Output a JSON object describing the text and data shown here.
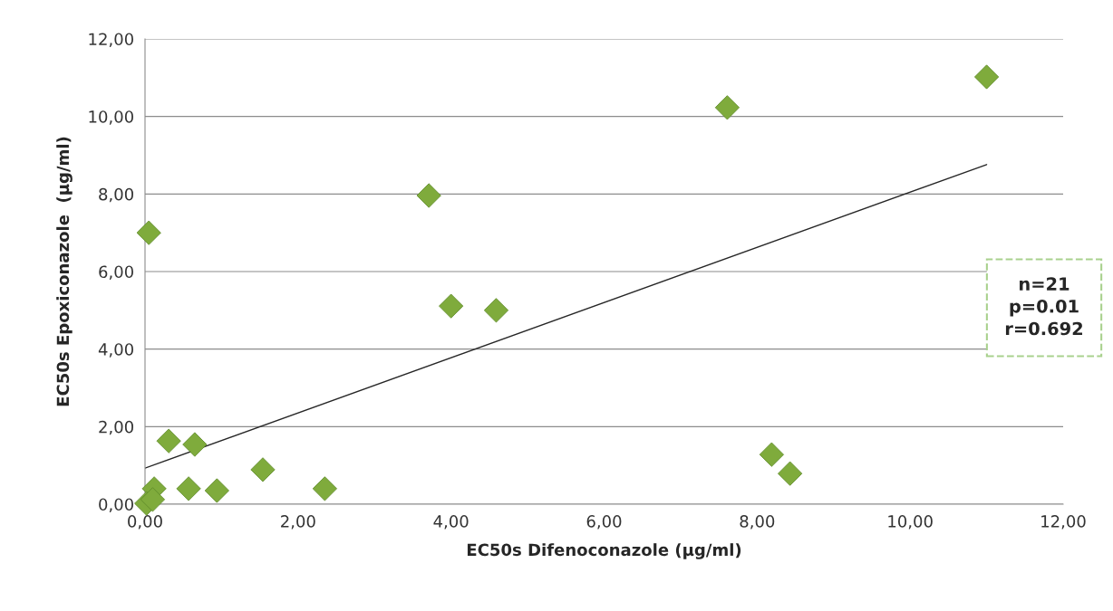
{
  "chart_data": {
    "type": "scatter",
    "xlabel": "EC50s Difenoconazole (µg/ml)",
    "ylabel": "EC50s Epoxiconazole  (µg/ml)",
    "series": [
      {
        "color": "#7fab3c",
        "marker": "diamond",
        "x": [
          0.05,
          0.31,
          0.65,
          0.12,
          0.57,
          0.94,
          1.54,
          2.35,
          3.71,
          4.0,
          4.59,
          7.61,
          8.19,
          8.43,
          11.0,
          0.02,
          0.1
        ],
        "values": [
          7.0,
          1.63,
          1.54,
          0.4,
          0.4,
          0.35,
          0.89,
          0.4,
          7.96,
          5.11,
          5.0,
          10.23,
          1.28,
          0.79,
          11.02,
          0.02,
          0.12
        ]
      },
      {
        "type": "line",
        "color": "#262626",
        "marker": "none",
        "x": [
          0.0,
          11.0
        ],
        "values": [
          0.93,
          8.76
        ]
      }
    ],
    "xlim": [
      0,
      12
    ],
    "ylim": [
      0,
      12
    ],
    "xticks": [
      {
        "value": 0,
        "label": "0,00"
      },
      {
        "value": 2,
        "label": "2,00"
      },
      {
        "value": 4,
        "label": "4,00"
      },
      {
        "value": 6,
        "label": "6,00"
      },
      {
        "value": 8,
        "label": "8,00"
      },
      {
        "value": 10,
        "label": "10,00"
      },
      {
        "value": 12,
        "label": "12,00"
      }
    ],
    "yticks": [
      {
        "value": 0,
        "label": "0,00"
      },
      {
        "value": 2,
        "label": "2,00"
      },
      {
        "value": 4,
        "label": "4,00"
      },
      {
        "value": 6,
        "label": "6,00"
      },
      {
        "value": 8,
        "label": "8,00"
      },
      {
        "value": 10,
        "label": "10,00"
      },
      {
        "value": 12,
        "label": "12,00"
      }
    ],
    "grid": "y",
    "legend": false,
    "annotations": [
      "n=21\np=0.01\nr=0.692"
    ]
  }
}
